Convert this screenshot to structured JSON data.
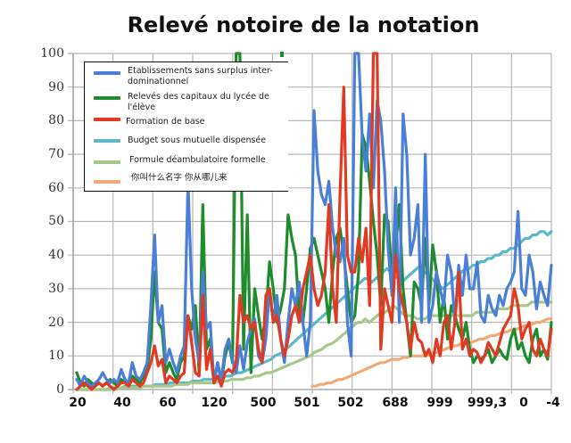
{
  "chart_data": {
    "type": "line",
    "title": "Relevé notoire de la notation",
    "xlabel": "",
    "ylabel": "",
    "ylim": [
      0,
      100
    ],
    "yticks": [
      0,
      10,
      20,
      30,
      40,
      50,
      60,
      70,
      80,
      90,
      100
    ],
    "xtick_labels": [
      "20",
      "40",
      "60",
      "120",
      "500",
      "501",
      "502",
      "688",
      "999",
      "999,3",
      "0",
      "-4"
    ],
    "grid": true,
    "legend_position": "upper-left (inside)",
    "series": [
      {
        "name": "Etablissements sans surplus inter-dominationnel",
        "color": "#4a7fd8",
        "values": [
          3,
          1,
          4,
          2,
          1,
          2,
          3,
          5,
          3,
          2,
          3,
          2,
          6,
          3,
          2,
          8,
          4,
          3,
          5,
          8,
          25,
          46,
          20,
          25,
          8,
          12,
          8,
          5,
          10,
          13,
          62,
          30,
          15,
          8,
          35,
          18,
          20,
          2,
          8,
          3,
          12,
          15,
          9,
          5,
          13,
          6,
          14,
          18,
          21,
          10,
          8,
          15,
          30,
          20,
          28,
          15,
          8,
          20,
          30,
          25,
          32,
          20,
          10,
          20,
          83,
          65,
          58,
          55,
          62,
          48,
          40,
          38,
          45,
          20,
          10,
          100,
          100,
          75,
          65,
          82,
          60,
          86,
          80,
          65,
          42,
          28,
          60,
          20,
          82,
          70,
          40,
          45,
          55,
          20,
          70,
          20,
          25,
          35,
          30,
          25,
          40,
          35,
          20,
          37,
          28,
          40,
          30,
          30,
          38,
          22,
          20,
          28,
          24,
          22,
          28,
          25,
          30,
          32,
          35,
          53,
          30,
          28,
          40,
          35,
          24,
          32,
          28,
          25,
          37
        ]
      },
      {
        "name": "Relevés des capitaux du lycée de l'élève",
        "color": "#1e8c2a",
        "values": [
          5,
          2,
          1,
          3,
          2,
          1,
          2,
          1,
          2,
          3,
          2,
          1,
          3,
          2,
          2,
          4,
          3,
          2,
          4,
          6,
          15,
          35,
          20,
          18,
          5,
          8,
          5,
          3,
          8,
          10,
          22,
          18,
          25,
          5,
          55,
          12,
          15,
          2,
          8,
          2,
          10,
          14,
          8,
          100,
          100,
          12,
          52,
          5,
          30,
          22,
          15,
          22,
          38,
          30,
          20,
          24,
          30,
          52,
          45,
          40,
          22,
          20,
          30,
          42,
          45,
          40,
          35,
          30,
          20,
          35,
          45,
          48,
          40,
          30,
          20,
          22,
          35,
          76,
          72,
          62,
          50,
          40,
          25,
          52,
          50,
          33,
          42,
          55,
          30,
          20,
          10,
          32,
          30,
          25,
          45,
          25,
          43,
          35,
          20,
          28,
          15,
          25,
          22,
          18,
          15,
          20,
          12,
          8,
          10,
          9,
          10,
          12,
          8,
          10,
          12,
          10,
          9,
          15,
          18,
          12,
          14,
          10,
          8,
          15,
          18,
          10,
          12,
          9,
          20
        ]
      },
      {
        "name": "Formation de base",
        "color": "#e03a22",
        "values": [
          0,
          1,
          2,
          1,
          0,
          1,
          2,
          1,
          2,
          1,
          0,
          1,
          2,
          2,
          1,
          3,
          2,
          1,
          2,
          5,
          8,
          13,
          7,
          9,
          2,
          4,
          3,
          2,
          4,
          5,
          22,
          14,
          5,
          4,
          28,
          6,
          12,
          2,
          4,
          1,
          5,
          6,
          5,
          8,
          28,
          20,
          22,
          18,
          20,
          12,
          8,
          28,
          30,
          20,
          22,
          15,
          10,
          15,
          22,
          25,
          20,
          30,
          35,
          40,
          30,
          25,
          28,
          35,
          55,
          30,
          20,
          58,
          90,
          40,
          35,
          35,
          45,
          38,
          48,
          25,
          100,
          100,
          12,
          30,
          25,
          20,
          40,
          30,
          25,
          20,
          12,
          20,
          15,
          14,
          10,
          12,
          8,
          15,
          10,
          20,
          22,
          12,
          20,
          35,
          12,
          15,
          10,
          12,
          11,
          8,
          10,
          14,
          12,
          10,
          14,
          18,
          20,
          22,
          30,
          25,
          15,
          18,
          20,
          12,
          10,
          15,
          12,
          10,
          18
        ]
      },
      {
        "name": "Budget sous mutuelle dispensée",
        "color": "#5bb8c8",
        "values": [
          0,
          0,
          0,
          0,
          0,
          0,
          0,
          0,
          0,
          0.5,
          0.5,
          0.5,
          0.5,
          1,
          1,
          1,
          1,
          1,
          1,
          1,
          1,
          1.5,
          1.5,
          1.5,
          1.5,
          2,
          2,
          2,
          2,
          2,
          2,
          2.5,
          2.5,
          2.5,
          3,
          3,
          3,
          3,
          3.5,
          3.5,
          4,
          4,
          4.5,
          5,
          5,
          5.5,
          6,
          6.5,
          7,
          7.5,
          8,
          8.5,
          9,
          10,
          10.5,
          11,
          12,
          13,
          14,
          15,
          16,
          17,
          18,
          19,
          20,
          21,
          22,
          23,
          24,
          25,
          26,
          27,
          28,
          29,
          30,
          31,
          32,
          33,
          33,
          32,
          33,
          34,
          35,
          36,
          35,
          34,
          33,
          32,
          33,
          34,
          35,
          36,
          37,
          35,
          34,
          33,
          32,
          31,
          30,
          31,
          32,
          33,
          34,
          35,
          36,
          36,
          37,
          37,
          38,
          38,
          39,
          39,
          40,
          40,
          41,
          41,
          42,
          42,
          43,
          44,
          45,
          45,
          46,
          46,
          47,
          47,
          46,
          47
        ]
      },
      {
        "name": "Formule déambulatoire formelle",
        "color": "#a8c88a",
        "values": [
          0,
          0,
          0,
          0,
          0,
          0,
          0,
          0,
          0,
          0,
          0,
          0.5,
          0.5,
          0.5,
          0.5,
          0.5,
          0.5,
          1,
          1,
          1,
          1,
          1,
          1,
          1,
          1,
          1.5,
          1.5,
          1.5,
          1.5,
          2,
          2,
          2,
          2,
          2,
          2,
          2,
          2.5,
          2.5,
          2.5,
          3,
          3,
          3,
          3,
          3.5,
          3.5,
          4,
          4,
          4.5,
          5,
          5,
          5.5,
          6,
          6.5,
          7,
          7.5,
          8,
          8.5,
          9,
          9.5,
          10,
          11,
          11.5,
          12,
          13,
          13.5,
          14,
          15,
          16,
          17,
          18,
          19,
          20,
          20,
          21,
          20,
          21,
          22,
          23,
          23,
          24,
          25,
          24,
          23,
          22,
          22,
          22,
          21,
          21,
          21,
          22,
          22,
          22,
          22,
          22,
          22,
          22,
          22,
          22,
          22,
          22,
          22,
          23,
          23,
          23,
          23,
          23,
          24,
          24,
          24,
          24,
          25,
          25,
          25,
          25,
          25,
          26,
          26,
          26,
          26,
          26,
          26
        ]
      },
      {
        "name": "你叫什么名字 你从哪儿来",
        "color": "#f0aa78",
        "values": [
          null,
          null,
          null,
          null,
          null,
          null,
          null,
          null,
          null,
          null,
          null,
          null,
          null,
          null,
          null,
          null,
          null,
          null,
          null,
          null,
          null,
          null,
          null,
          null,
          null,
          null,
          null,
          null,
          null,
          null,
          null,
          null,
          null,
          null,
          null,
          null,
          null,
          null,
          null,
          null,
          null,
          null,
          null,
          null,
          null,
          null,
          null,
          null,
          null,
          null,
          null,
          null,
          null,
          null,
          null,
          null,
          null,
          null,
          null,
          null,
          null,
          null,
          1,
          1,
          1.5,
          1.5,
          2,
          2,
          2.5,
          3,
          3,
          3.5,
          4,
          4.5,
          5,
          5.5,
          6,
          6.5,
          7,
          7.5,
          8,
          8,
          8.5,
          9,
          9,
          9,
          9.5,
          9.5,
          10,
          10,
          10,
          10,
          10,
          10.5,
          11,
          11,
          11.5,
          12,
          12.5,
          13,
          13,
          13.5,
          13.5,
          14,
          14,
          14.5,
          15,
          15,
          15.5,
          16,
          16,
          16.5,
          17,
          17,
          17.5,
          18,
          18,
          18.5,
          19,
          19,
          19.5,
          20,
          20,
          20.5,
          21,
          21
        ]
      }
    ]
  },
  "page": {
    "title": "Relevé notoire de la notation",
    "legend": [
      "Etablissements sans surplus inter-dominationnel",
      "Relevés des capitaux du lycée de l'élève",
      "Formation de base",
      "Budget sous mutuelle dispensée",
      "Formule déambulatoire formelle",
      "你叫什么名字  你从哪儿来"
    ],
    "yticks": [
      "100",
      "90",
      "80",
      "70",
      "60",
      "50",
      "40",
      "30",
      "20",
      "10",
      "0"
    ],
    "xticks": [
      "20",
      "40",
      "60",
      "120",
      "500",
      "501",
      "502",
      "688",
      "999",
      "999,3",
      "0",
      "-4"
    ]
  }
}
